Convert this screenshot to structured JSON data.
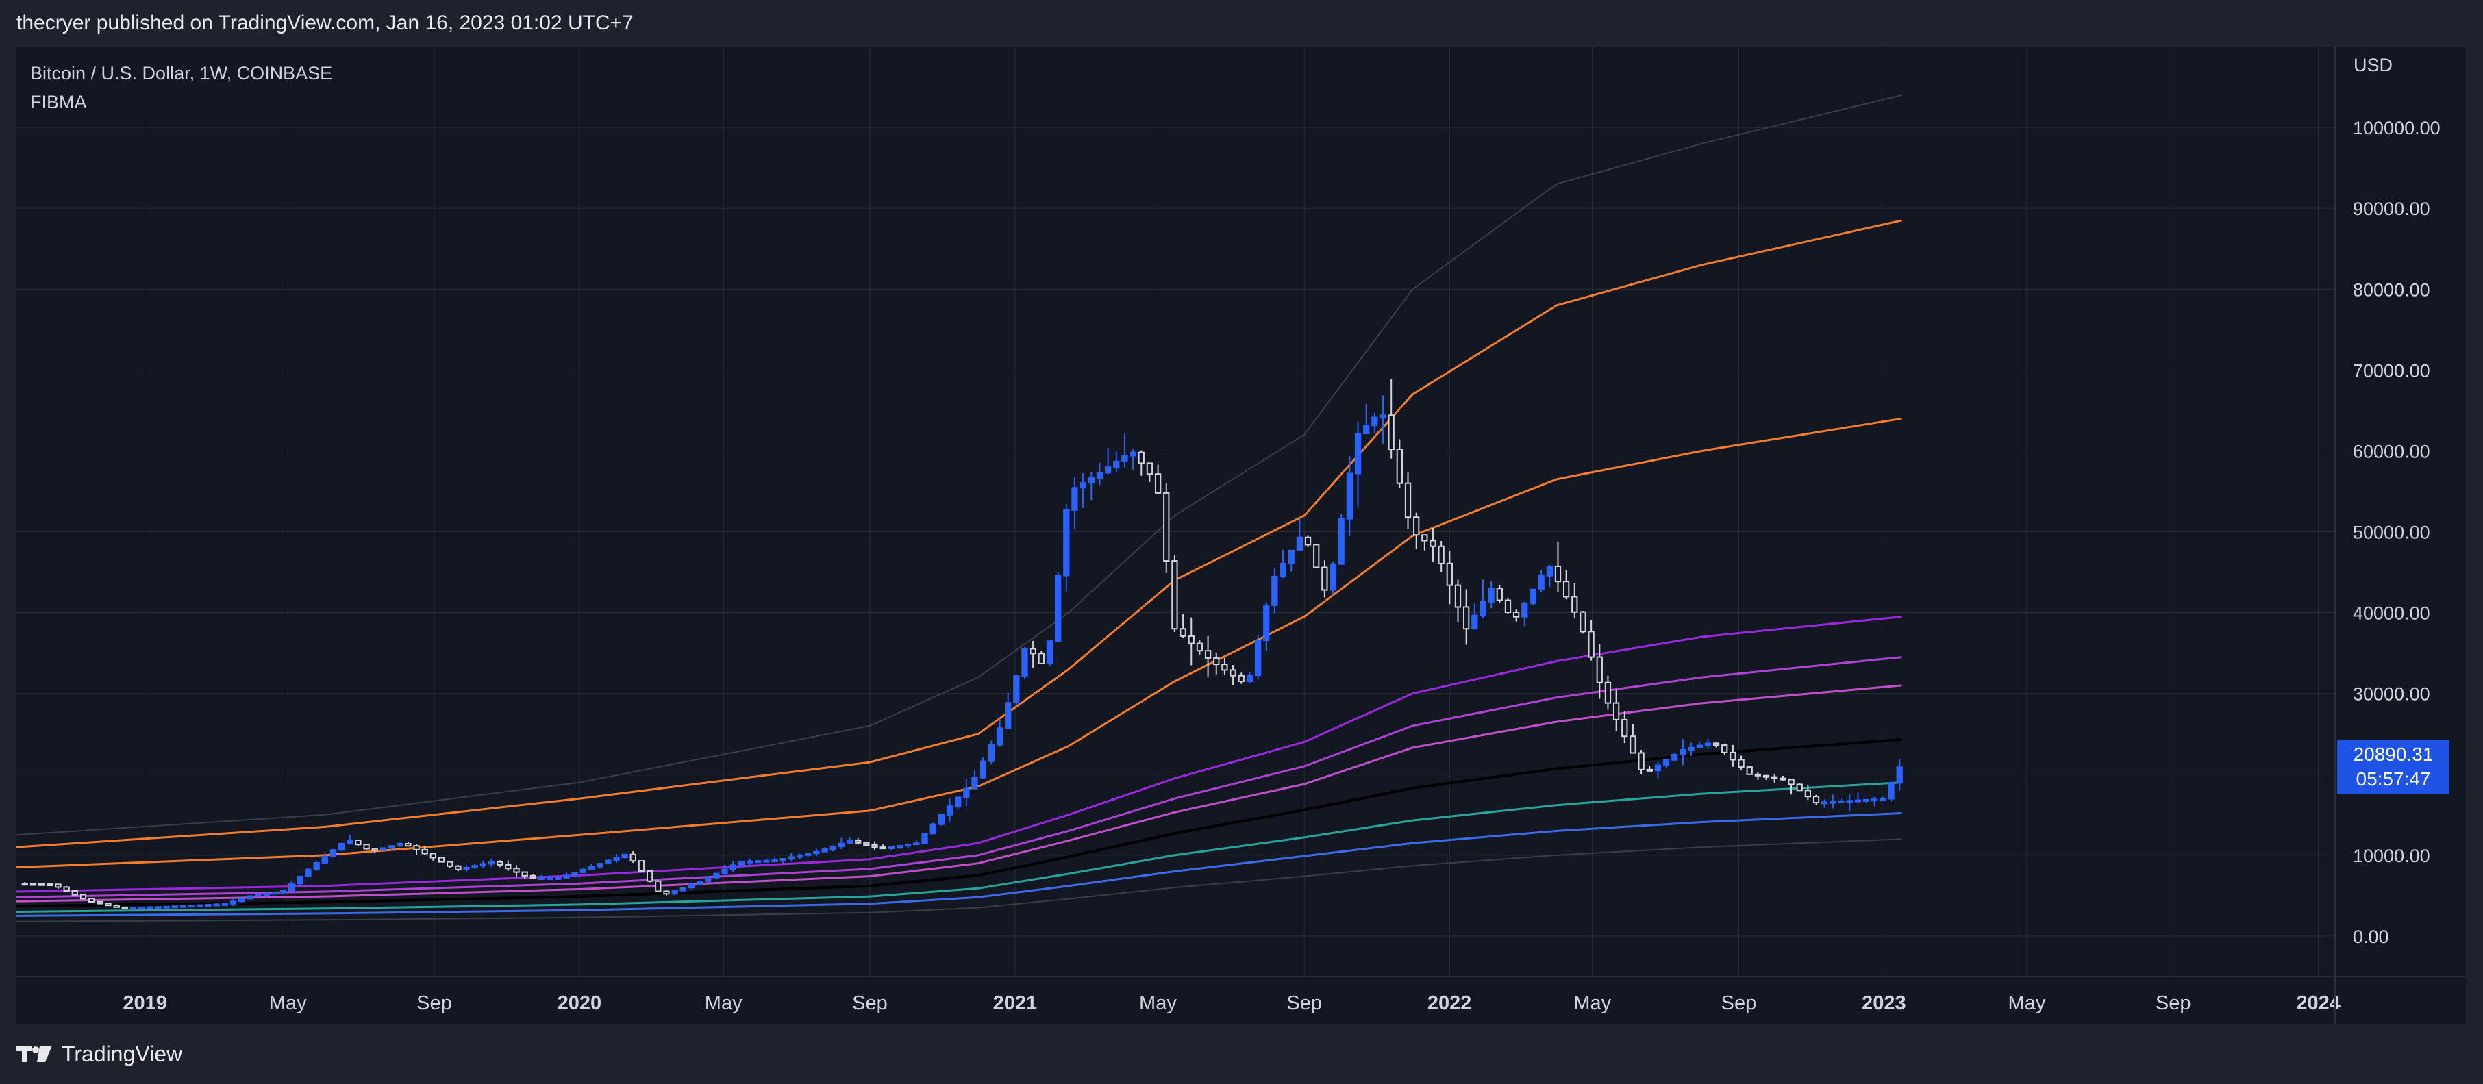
{
  "header": {
    "published_text": "thecryer published on TradingView.com, Jan 16, 2023 01:02 UTC+7"
  },
  "legend": {
    "symbol": "Bitcoin / U.S. Dollar, 1W, COINBASE",
    "indicator": "FIBMA"
  },
  "footer": {
    "brand": "TradingView",
    "logo_icon": "tradingview-logo-icon"
  },
  "price_tag": {
    "price": "20890.31",
    "countdown": "05:57:47"
  },
  "colors": {
    "background": "#131722",
    "frame": "#1e222d",
    "grid": "#2a2e39",
    "candle_up": "#2962ff",
    "candle_down": "#d1d4dc",
    "tag": "#1e53e5"
  },
  "chart_data": {
    "type": "line",
    "currency": "USD",
    "ylim": [
      -5000,
      110000
    ],
    "y_ticks": [
      {
        "v": 0,
        "label": "0.00"
      },
      {
        "v": 10000,
        "label": "10000.00"
      },
      {
        "v": 20000,
        "label": "20000.00"
      },
      {
        "v": 30000,
        "label": "30000.00"
      },
      {
        "v": 40000,
        "label": "40000.00"
      },
      {
        "v": 50000,
        "label": "50000.00"
      },
      {
        "v": 60000,
        "label": "60000.00"
      },
      {
        "v": 70000,
        "label": "70000.00"
      },
      {
        "v": 80000,
        "label": "80000.00"
      },
      {
        "v": 90000,
        "label": "90000.00"
      },
      {
        "v": 100000,
        "label": "100000.00"
      }
    ],
    "xlim": [
      "2018-09-15",
      "2024-01-15"
    ],
    "x_ticks": [
      {
        "date": "2019-01-01",
        "label": "2019",
        "major": true
      },
      {
        "date": "2019-05-01",
        "label": "May",
        "major": false
      },
      {
        "date": "2019-09-01",
        "label": "Sep",
        "major": false
      },
      {
        "date": "2020-01-01",
        "label": "2020",
        "major": true
      },
      {
        "date": "2020-05-01",
        "label": "May",
        "major": false
      },
      {
        "date": "2020-09-01",
        "label": "Sep",
        "major": false
      },
      {
        "date": "2021-01-01",
        "label": "2021",
        "major": true
      },
      {
        "date": "2021-05-01",
        "label": "May",
        "major": false
      },
      {
        "date": "2021-09-01",
        "label": "Sep",
        "major": false
      },
      {
        "date": "2022-01-01",
        "label": "2022",
        "major": true
      },
      {
        "date": "2022-05-01",
        "label": "May",
        "major": false
      },
      {
        "date": "2022-09-01",
        "label": "Sep",
        "major": false
      },
      {
        "date": "2023-01-01",
        "label": "2023",
        "major": true
      },
      {
        "date": "2023-05-01",
        "label": "May",
        "major": false
      },
      {
        "date": "2023-09-01",
        "label": "Sep",
        "major": false
      },
      {
        "date": "2024-01-01",
        "label": "2024",
        "major": true
      }
    ],
    "price_anchors": [
      [
        "2018-09-20",
        6500
      ],
      [
        "2018-10-20",
        6400
      ],
      [
        "2018-11-20",
        4300
      ],
      [
        "2018-12-15",
        3500
      ],
      [
        "2019-01-15",
        3600
      ],
      [
        "2019-02-15",
        3800
      ],
      [
        "2019-03-15",
        4000
      ],
      [
        "2019-04-05",
        5000
      ],
      [
        "2019-05-01",
        5500
      ],
      [
        "2019-05-25",
        8500
      ],
      [
        "2019-06-25",
        12000
      ],
      [
        "2019-07-15",
        10500
      ],
      [
        "2019-08-10",
        11500
      ],
      [
        "2019-09-01",
        10000
      ],
      [
        "2019-09-25",
        8200
      ],
      [
        "2019-10-25",
        9200
      ],
      [
        "2019-11-25",
        7200
      ],
      [
        "2019-12-20",
        7200
      ],
      [
        "2020-01-20",
        8800
      ],
      [
        "2020-02-15",
        10200
      ],
      [
        "2020-03-15",
        5000
      ],
      [
        "2020-04-20",
        7000
      ],
      [
        "2020-05-20",
        9200
      ],
      [
        "2020-06-20",
        9400
      ],
      [
        "2020-07-25",
        10500
      ],
      [
        "2020-08-20",
        11800
      ],
      [
        "2020-09-15",
        10800
      ],
      [
        "2020-10-15",
        11500
      ],
      [
        "2020-11-05",
        15000
      ],
      [
        "2020-12-01",
        19000
      ],
      [
        "2020-12-25",
        26000
      ],
      [
        "2021-01-15",
        36000
      ],
      [
        "2021-02-01",
        33000
      ],
      [
        "2021-02-20",
        55000
      ],
      [
        "2021-03-15",
        57000
      ],
      [
        "2021-04-14",
        60000
      ],
      [
        "2021-05-05",
        56000
      ],
      [
        "2021-05-20",
        38000
      ],
      [
        "2021-06-20",
        34000
      ],
      [
        "2021-07-20",
        31000
      ],
      [
        "2021-08-10",
        44000
      ],
      [
        "2021-09-05",
        50000
      ],
      [
        "2021-09-25",
        42000
      ],
      [
        "2021-10-20",
        62000
      ],
      [
        "2021-11-10",
        65000
      ],
      [
        "2021-12-05",
        50000
      ],
      [
        "2021-12-25",
        48000
      ],
      [
        "2022-01-20",
        38000
      ],
      [
        "2022-02-10",
        43000
      ],
      [
        "2022-03-01",
        39000
      ],
      [
        "2022-03-30",
        46000
      ],
      [
        "2022-04-25",
        39000
      ],
      [
        "2022-05-15",
        30000
      ],
      [
        "2022-06-18",
        20000
      ],
      [
        "2022-07-20",
        23000
      ],
      [
        "2022-08-15",
        24000
      ],
      [
        "2022-09-15",
        20000
      ],
      [
        "2022-10-15",
        19300
      ],
      [
        "2022-11-10",
        16500
      ],
      [
        "2022-12-15",
        16800
      ],
      [
        "2023-01-08",
        17000
      ],
      [
        "2023-01-16",
        20890
      ]
    ],
    "series": [
      {
        "color": "#3a3e4a",
        "width": 2,
        "points": [
          [
            "2018-09-15",
            12500
          ],
          [
            "2019-06-01",
            15000
          ],
          [
            "2020-01-01",
            19000
          ],
          [
            "2020-09-01",
            26000
          ],
          [
            "2020-12-01",
            32000
          ],
          [
            "2021-02-15",
            40000
          ],
          [
            "2021-05-15",
            52000
          ],
          [
            "2021-09-01",
            62000
          ],
          [
            "2021-12-01",
            80000
          ],
          [
            "2022-04-01",
            93000
          ],
          [
            "2022-08-01",
            98000
          ],
          [
            "2023-01-16",
            104000
          ]
        ]
      },
      {
        "color": "#f57c2a",
        "width": 3,
        "points": [
          [
            "2018-09-15",
            11000
          ],
          [
            "2019-06-01",
            13500
          ],
          [
            "2020-01-01",
            17000
          ],
          [
            "2020-09-01",
            21500
          ],
          [
            "2020-12-01",
            25000
          ],
          [
            "2021-02-15",
            33000
          ],
          [
            "2021-05-15",
            44000
          ],
          [
            "2021-09-01",
            52000
          ],
          [
            "2021-12-01",
            67000
          ],
          [
            "2022-04-01",
            78000
          ],
          [
            "2022-08-01",
            83000
          ],
          [
            "2023-01-16",
            88500
          ]
        ]
      },
      {
        "color": "#f57c2a",
        "width": 3,
        "points": [
          [
            "2018-09-15",
            8500
          ],
          [
            "2019-06-01",
            10000
          ],
          [
            "2020-01-01",
            12500
          ],
          [
            "2020-09-01",
            15500
          ],
          [
            "2020-12-01",
            18500
          ],
          [
            "2021-02-15",
            23500
          ],
          [
            "2021-05-15",
            31500
          ],
          [
            "2021-09-01",
            39500
          ],
          [
            "2021-12-01",
            49500
          ],
          [
            "2022-04-01",
            56500
          ],
          [
            "2022-08-01",
            60000
          ],
          [
            "2023-01-16",
            64000
          ]
        ]
      },
      {
        "color": "#9c27e0",
        "width": 3,
        "points": [
          [
            "2018-09-15",
            5500
          ],
          [
            "2019-06-01",
            6200
          ],
          [
            "2020-01-01",
            7500
          ],
          [
            "2020-09-01",
            9500
          ],
          [
            "2020-12-01",
            11500
          ],
          [
            "2021-02-15",
            15000
          ],
          [
            "2021-05-15",
            19500
          ],
          [
            "2021-09-01",
            24000
          ],
          [
            "2021-12-01",
            30000
          ],
          [
            "2022-04-01",
            34000
          ],
          [
            "2022-08-01",
            37000
          ],
          [
            "2023-01-16",
            39500
          ]
        ]
      },
      {
        "color": "#b041d6",
        "width": 3,
        "points": [
          [
            "2018-09-15",
            4800
          ],
          [
            "2019-06-01",
            5500
          ],
          [
            "2020-01-01",
            6500
          ],
          [
            "2020-09-01",
            8300
          ],
          [
            "2020-12-01",
            10000
          ],
          [
            "2021-02-15",
            13000
          ],
          [
            "2021-05-15",
            17000
          ],
          [
            "2021-09-01",
            21000
          ],
          [
            "2021-12-01",
            26000
          ],
          [
            "2022-04-01",
            29500
          ],
          [
            "2022-08-01",
            32000
          ],
          [
            "2023-01-16",
            34500
          ]
        ]
      },
      {
        "color": "#c24fc9",
        "width": 3,
        "points": [
          [
            "2018-09-15",
            4300
          ],
          [
            "2019-06-01",
            4900
          ],
          [
            "2020-01-01",
            5800
          ],
          [
            "2020-09-01",
            7400
          ],
          [
            "2020-12-01",
            9000
          ],
          [
            "2021-02-15",
            11800
          ],
          [
            "2021-05-15",
            15300
          ],
          [
            "2021-09-01",
            18800
          ],
          [
            "2021-12-01",
            23300
          ],
          [
            "2022-04-01",
            26500
          ],
          [
            "2022-08-01",
            28800
          ],
          [
            "2023-01-16",
            31000
          ]
        ]
      },
      {
        "color": "#000000",
        "width": 4,
        "points": [
          [
            "2018-09-15",
            3700
          ],
          [
            "2019-06-01",
            4200
          ],
          [
            "2020-01-01",
            4900
          ],
          [
            "2020-09-01",
            6200
          ],
          [
            "2020-12-01",
            7500
          ],
          [
            "2021-02-15",
            9800
          ],
          [
            "2021-05-15",
            12700
          ],
          [
            "2021-09-01",
            15600
          ],
          [
            "2021-12-01",
            18300
          ],
          [
            "2022-04-01",
            20700
          ],
          [
            "2022-08-01",
            22500
          ],
          [
            "2023-01-16",
            24300
          ]
        ]
      },
      {
        "color": "#26a69a",
        "width": 3,
        "points": [
          [
            "2018-09-15",
            3000
          ],
          [
            "2019-06-01",
            3400
          ],
          [
            "2020-01-01",
            3900
          ],
          [
            "2020-09-01",
            4900
          ],
          [
            "2020-12-01",
            5900
          ],
          [
            "2021-02-15",
            7700
          ],
          [
            "2021-05-15",
            10000
          ],
          [
            "2021-09-01",
            12200
          ],
          [
            "2021-12-01",
            14300
          ],
          [
            "2022-04-01",
            16200
          ],
          [
            "2022-08-01",
            17600
          ],
          [
            "2023-01-16",
            19000
          ]
        ]
      },
      {
        "color": "#3d6be8",
        "width": 3,
        "points": [
          [
            "2018-09-15",
            2500
          ],
          [
            "2019-06-01",
            2800
          ],
          [
            "2020-01-01",
            3200
          ],
          [
            "2020-09-01",
            4000
          ],
          [
            "2020-12-01",
            4800
          ],
          [
            "2021-02-15",
            6200
          ],
          [
            "2021-05-15",
            8000
          ],
          [
            "2021-09-01",
            9900
          ],
          [
            "2021-12-01",
            11500
          ],
          [
            "2022-04-01",
            13000
          ],
          [
            "2022-08-01",
            14100
          ],
          [
            "2023-01-16",
            15200
          ]
        ]
      },
      {
        "color": "#3a3e4a",
        "width": 2,
        "points": [
          [
            "2018-09-15",
            1800
          ],
          [
            "2019-06-01",
            2000
          ],
          [
            "2020-01-01",
            2300
          ],
          [
            "2020-09-01",
            2900
          ],
          [
            "2020-12-01",
            3500
          ],
          [
            "2021-02-15",
            4600
          ],
          [
            "2021-05-15",
            6000
          ],
          [
            "2021-09-01",
            7400
          ],
          [
            "2021-12-01",
            8700
          ],
          [
            "2022-04-01",
            10000
          ],
          [
            "2022-08-01",
            11000
          ],
          [
            "2023-01-16",
            12000
          ]
        ]
      }
    ]
  }
}
